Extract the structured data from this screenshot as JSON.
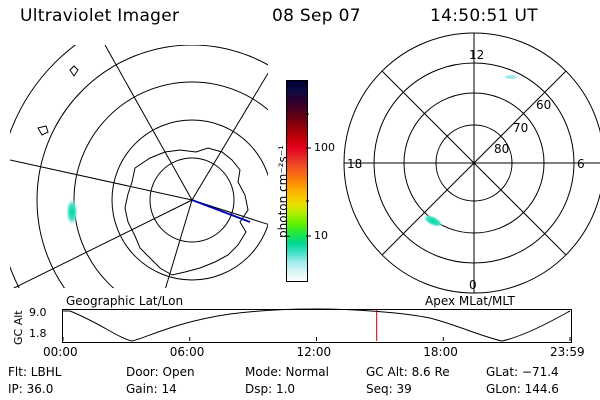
{
  "header": {
    "instrument": "Ultraviolet Imager",
    "date": "08 Sep 07",
    "time": "14:50:51 UT"
  },
  "left_panel": {
    "caption": "Geographic Lat/Lon"
  },
  "right_panel": {
    "caption": "Apex MLat/MLT",
    "mlt_labels": {
      "top": "12",
      "left": "18",
      "right": "6",
      "bottom": "0"
    },
    "lat_labels": [
      "60",
      "70",
      "80"
    ]
  },
  "colorbar": {
    "unit_label": "photon cm⁻²s⁻¹",
    "ticks": [
      "100",
      "10"
    ],
    "colors": [
      "#000030",
      "#0b0b45",
      "#2a0030",
      "#4a0020",
      "#6e0010",
      "#9a0008",
      "#c4000a",
      "#e4001a",
      "#e82828",
      "#f05020",
      "#f87010",
      "#fc9a00",
      "#fcc000",
      "#e8e000",
      "#a8f000",
      "#60f000",
      "#20e840",
      "#00d890",
      "#40e0c8",
      "#a0ecec",
      "#d8f4f4",
      "#ffffff"
    ]
  },
  "altitude_strip": {
    "ylabel": "GC Alt",
    "yticks": [
      "9.0",
      "1.8"
    ],
    "xticks": [
      "00:00",
      "06:00",
      "12:00",
      "18:00",
      "23:59"
    ],
    "current_marker_hour": 14.85,
    "marker_color": "#c00000"
  },
  "footer": {
    "flt": "Flt: LBHL",
    "ip": "IP: 36.0",
    "door": "Door: Open",
    "gain": "Gain: 14",
    "mode": "Mode: Normal",
    "dsp": "Dsp:    1.0",
    "gc_alt": "GC Alt: 8.6 Re",
    "seq": "Seq: 39",
    "glat": "GLat: −71.4",
    "glon": "GLon: 144.6"
  }
}
